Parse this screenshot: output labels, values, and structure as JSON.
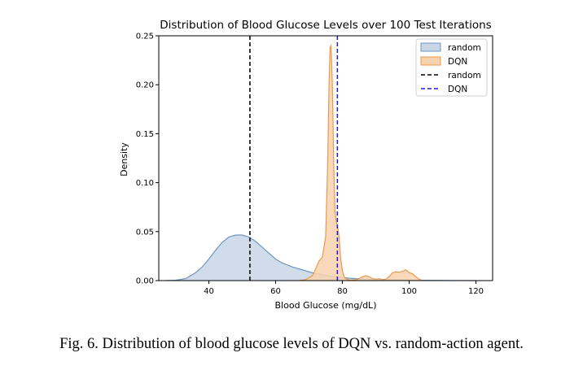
{
  "chart_data": {
    "type": "area",
    "title": "Distribution of Blood Glucose Levels over 100 Test Iterations",
    "xlabel": "Blood Glucose (mg/dL)",
    "ylabel": "Density",
    "xlim": [
      25,
      125
    ],
    "ylim": [
      0,
      0.25
    ],
    "xticks": [
      "40",
      "60",
      "80",
      "100",
      "120"
    ],
    "yticks": [
      "0.00",
      "0.05",
      "0.10",
      "0.15",
      "0.20",
      "0.25"
    ],
    "xtick_values": [
      40,
      60,
      80,
      100,
      120
    ],
    "ytick_values": [
      0,
      0.05,
      0.1,
      0.15,
      0.2,
      0.25
    ],
    "grid": false,
    "legend_position": "top-right",
    "series": [
      {
        "name": "random",
        "kind": "kde-fill",
        "color": "#6f95c2",
        "fill": "#c9d6e6",
        "points": [
          [
            27,
            0
          ],
          [
            30,
            0.0003
          ],
          [
            33,
            0.002
          ],
          [
            36,
            0.008
          ],
          [
            38,
            0.014
          ],
          [
            40,
            0.022
          ],
          [
            42,
            0.031
          ],
          [
            44,
            0.039
          ],
          [
            46,
            0.0445
          ],
          [
            48,
            0.0465
          ],
          [
            50,
            0.0465
          ],
          [
            52,
            0.0445
          ],
          [
            54,
            0.04
          ],
          [
            56,
            0.034
          ],
          [
            58,
            0.028
          ],
          [
            60,
            0.022
          ],
          [
            62,
            0.018
          ],
          [
            65,
            0.014
          ],
          [
            68,
            0.011
          ],
          [
            71,
            0.008
          ],
          [
            74,
            0.006
          ],
          [
            77,
            0.0042
          ],
          [
            80,
            0.003
          ],
          [
            84,
            0.002
          ],
          [
            88,
            0.0013
          ],
          [
            92,
            0.0009
          ],
          [
            96,
            0.0006
          ],
          [
            100,
            0.0004
          ],
          [
            105,
            0.00025
          ],
          [
            110,
            0.00012
          ],
          [
            115,
            5e-05
          ],
          [
            120,
            0
          ]
        ]
      },
      {
        "name": "DQN",
        "kind": "kde-fill",
        "color": "#e79a4f",
        "fill": "#f8d2ae",
        "points": [
          [
            67,
            0
          ],
          [
            69,
            0.001
          ],
          [
            71,
            0.005
          ],
          [
            72,
            0.012
          ],
          [
            73,
            0.02
          ],
          [
            74,
            0.024
          ],
          [
            75,
            0.045
          ],
          [
            75.6,
            0.12
          ],
          [
            76,
            0.2
          ],
          [
            76.3,
            0.238
          ],
          [
            76.6,
            0.24
          ],
          [
            77,
            0.2
          ],
          [
            77.4,
            0.12
          ],
          [
            77.8,
            0.07
          ],
          [
            78.2,
            0.06
          ],
          [
            78.6,
            0.055
          ],
          [
            79,
            0.045
          ],
          [
            79.5,
            0.022
          ],
          [
            80,
            0.01
          ],
          [
            80.5,
            0.004
          ],
          [
            81,
            0.002
          ],
          [
            82,
            0.0005
          ],
          [
            84,
            0.0005
          ],
          [
            85,
            0.002
          ],
          [
            86,
            0.004
          ],
          [
            87,
            0.005
          ],
          [
            88,
            0.004
          ],
          [
            89,
            0.002
          ],
          [
            90,
            0.0015
          ],
          [
            91,
            0.002
          ],
          [
            92,
            0.001
          ],
          [
            93,
            0.0015
          ],
          [
            94,
            0.004
          ],
          [
            95,
            0.008
          ],
          [
            96,
            0.009
          ],
          [
            97,
            0.0085
          ],
          [
            98,
            0.0095
          ],
          [
            99,
            0.011
          ],
          [
            100,
            0.008
          ],
          [
            101,
            0.007
          ],
          [
            102,
            0.004
          ],
          [
            103,
            0.0015
          ],
          [
            104,
            0
          ]
        ]
      },
      {
        "name": "random",
        "kind": "vline",
        "color": "#000000",
        "x": 52.3
      },
      {
        "name": "DQN",
        "kind": "vline",
        "color": "#1f1fd6",
        "x": 78.5
      }
    ]
  },
  "caption": "Fig. 6.  Distribution of blood glucose levels of DQN vs. random-action agent."
}
